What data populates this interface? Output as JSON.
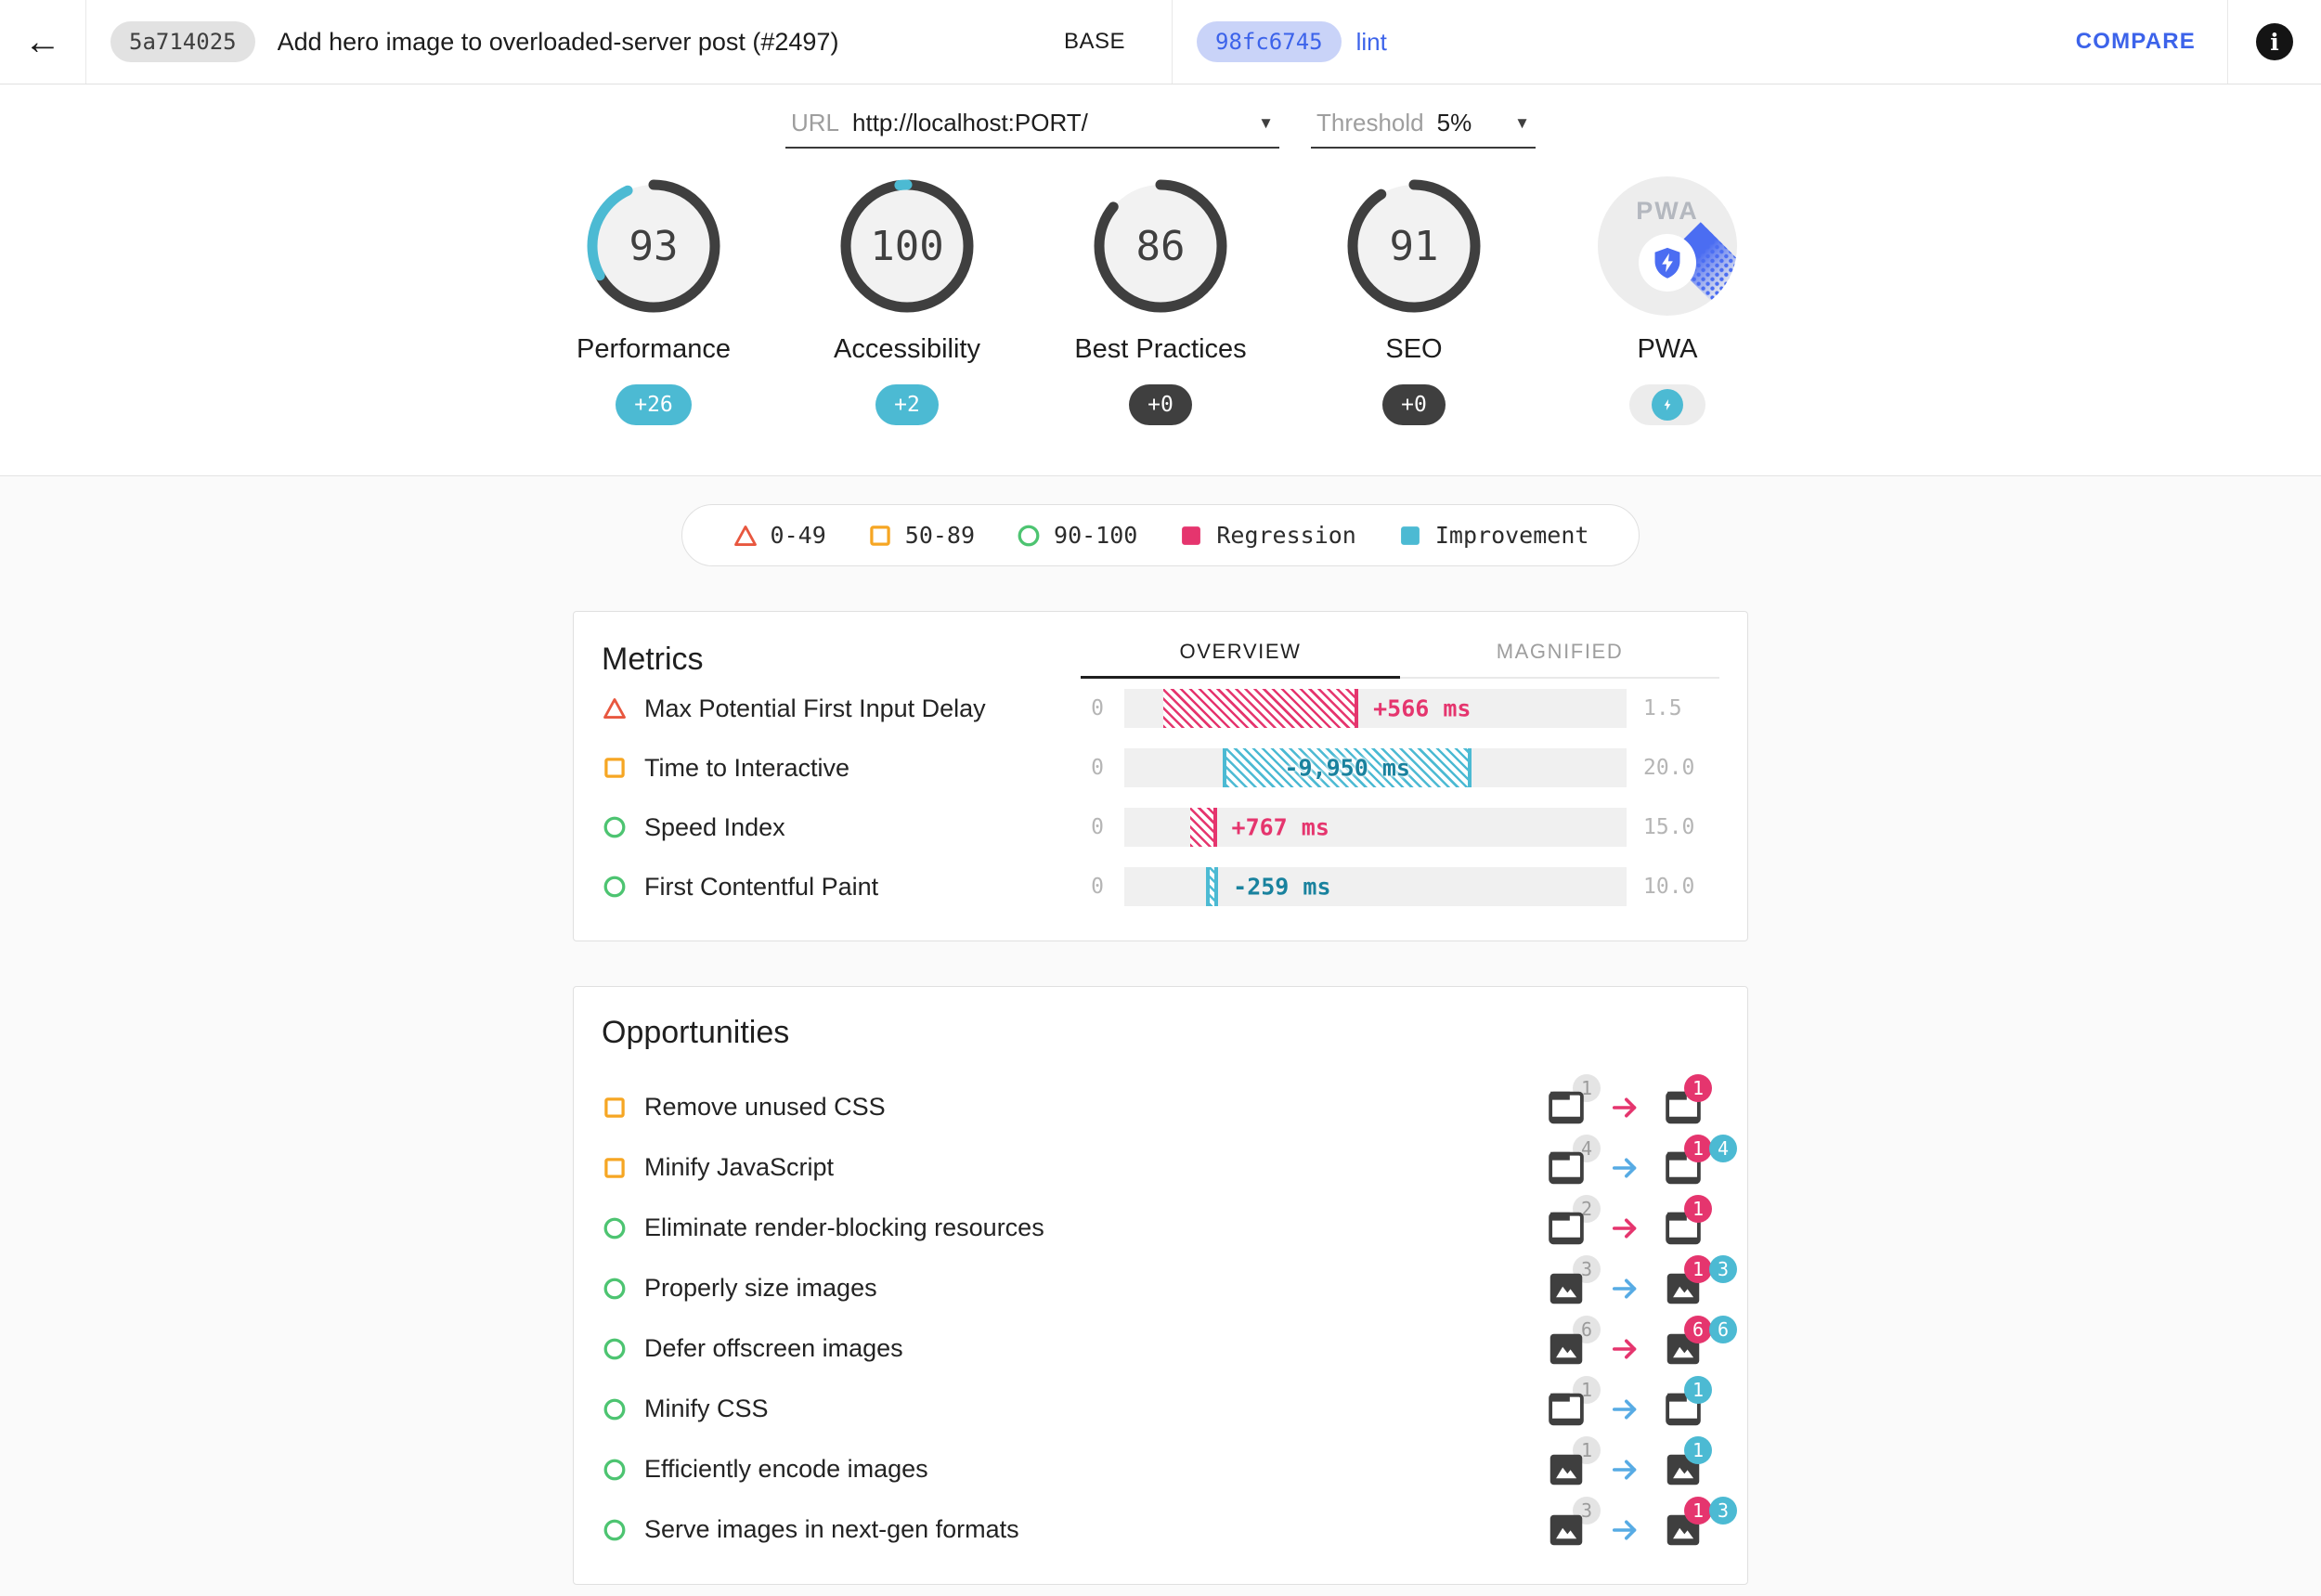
{
  "topbar": {
    "back_icon": "←",
    "base_hash": "5a714025",
    "title": "Add hero image to overloaded-server post (#2497)",
    "base_label": "BASE",
    "compare_hash": "98fc6745",
    "compare_branch": "lint",
    "compare_button": "COMPARE",
    "info_icon": "i"
  },
  "controls": {
    "url_label": "URL",
    "url_value": "http://localhost:PORT/",
    "threshold_label": "Threshold",
    "threshold_value": "5%",
    "caret": "▼"
  },
  "scores": {
    "items": [
      {
        "label": "Performance",
        "score": 93,
        "delta": 26,
        "delta_label": "+26",
        "badge": "improvement"
      },
      {
        "label": "Accessibility",
        "score": 100,
        "delta": 2,
        "delta_label": "+2",
        "badge": "improvement"
      },
      {
        "label": "Best Practices",
        "score": 86,
        "delta": 0,
        "delta_label": "+0",
        "badge": "neutral"
      },
      {
        "label": "SEO",
        "score": 91,
        "delta": 0,
        "delta_label": "+0",
        "badge": "neutral"
      },
      {
        "label": "PWA",
        "logo_text": "PWA",
        "badge": "pwa"
      }
    ]
  },
  "legend": {
    "items": [
      {
        "shape": "fail-triangle",
        "label": "0-49"
      },
      {
        "shape": "average-square",
        "label": "50-89"
      },
      {
        "shape": "pass-circle",
        "label": "90-100"
      },
      {
        "shape": "regression-square",
        "label": "Regression"
      },
      {
        "shape": "improvement-square",
        "label": "Improvement"
      }
    ]
  },
  "metrics": {
    "heading": "Metrics",
    "tabs": [
      {
        "label": "OVERVIEW",
        "active": true
      },
      {
        "label": "MAGNIFIED",
        "active": false
      }
    ],
    "rows": [
      {
        "status": "fail",
        "label": "Max Potential First Input Delay",
        "range_min": "0",
        "range_max": "1.5",
        "delta_label": "+566 ms",
        "change": "regression",
        "bar_left_pct": 7.7,
        "bar_width_pct": 38.9,
        "label_inside": false
      },
      {
        "status": "average",
        "label": "Time to Interactive",
        "range_min": "0",
        "range_max": "20.0",
        "delta_label": "-9,950 ms",
        "change": "improvement",
        "bar_left_pct": 19.6,
        "bar_width_pct": 49.6,
        "label_inside": true
      },
      {
        "status": "pass",
        "label": "Speed Index",
        "range_min": "0",
        "range_max": "15.0",
        "delta_label": "+767 ms",
        "change": "regression",
        "bar_left_pct": 13.1,
        "bar_width_pct": 5.3,
        "label_inside": false
      },
      {
        "status": "pass",
        "label": "First Contentful Paint",
        "range_min": "0",
        "range_max": "10.0",
        "delta_label": "-259 ms",
        "change": "improvement",
        "bar_left_pct": 16.3,
        "bar_width_pct": 2.4,
        "label_inside": false
      }
    ]
  },
  "opportunities": {
    "heading": "Opportunities",
    "rows": [
      {
        "status": "average",
        "label": "Remove unused CSS",
        "file_icon": "page",
        "base_count": "1",
        "arrow": "regression",
        "compare_badges": [
          {
            "type": "regression",
            "value": "1"
          }
        ]
      },
      {
        "status": "average",
        "label": "Minify JavaScript",
        "file_icon": "page",
        "base_count": "4",
        "arrow": "improvement",
        "compare_badges": [
          {
            "type": "regression",
            "value": "1"
          },
          {
            "type": "improvement",
            "value": "4"
          }
        ]
      },
      {
        "status": "pass",
        "label": "Eliminate render-blocking resources",
        "file_icon": "page",
        "base_count": "2",
        "arrow": "regression",
        "compare_badges": [
          {
            "type": "regression",
            "value": "1"
          }
        ]
      },
      {
        "status": "pass",
        "label": "Properly size images",
        "file_icon": "image",
        "base_count": "3",
        "arrow": "improvement",
        "compare_badges": [
          {
            "type": "regression",
            "value": "1"
          },
          {
            "type": "improvement",
            "value": "3"
          }
        ]
      },
      {
        "status": "pass",
        "label": "Defer offscreen images",
        "file_icon": "image",
        "base_count": "6",
        "arrow": "regression",
        "compare_badges": [
          {
            "type": "regression",
            "value": "6"
          },
          {
            "type": "improvement",
            "value": "6"
          }
        ]
      },
      {
        "status": "pass",
        "label": "Minify CSS",
        "file_icon": "page",
        "base_count": "1",
        "arrow": "improvement",
        "compare_badges": [
          {
            "type": "improvement",
            "value": "1"
          }
        ]
      },
      {
        "status": "pass",
        "label": "Efficiently encode images",
        "file_icon": "image",
        "base_count": "1",
        "arrow": "improvement",
        "compare_badges": [
          {
            "type": "improvement",
            "value": "1"
          }
        ]
      },
      {
        "status": "pass",
        "label": "Serve images in next-gen formats",
        "file_icon": "image",
        "base_count": "3",
        "arrow": "improvement",
        "compare_badges": [
          {
            "type": "regression",
            "value": "1"
          },
          {
            "type": "improvement",
            "value": "3"
          }
        ]
      }
    ]
  },
  "colors": {
    "regression": "#e5356e",
    "improvement": "#4cbad3",
    "improvement_text": "#19829e",
    "arrow_improvement": "#57abe4",
    "fail": "#e8573f",
    "average": "#f6a623",
    "pass": "#4dc471",
    "dark": "#3f3f3f",
    "link_blue": "#3c63ea",
    "chip_blue_bg": "#c9d3f8",
    "pwa_blue": "#4b6df2"
  }
}
